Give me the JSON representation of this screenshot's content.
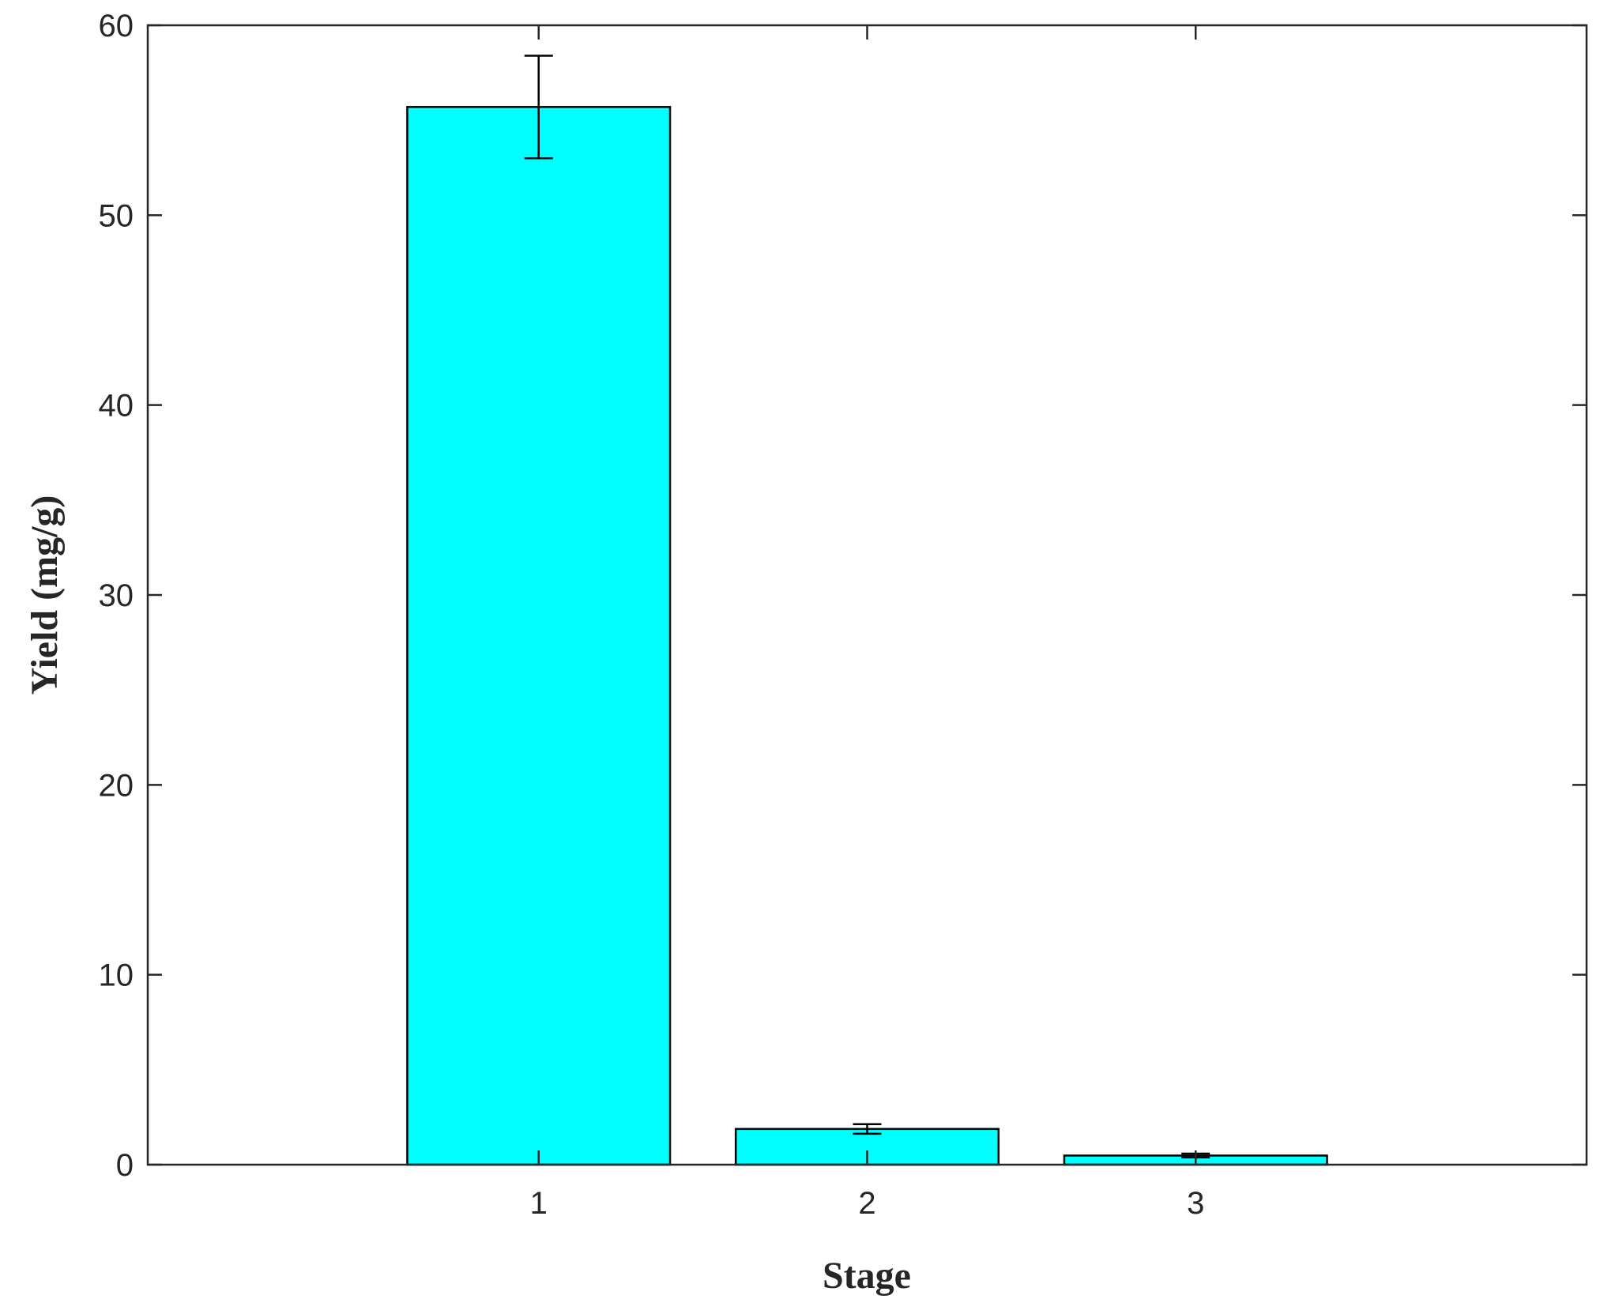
{
  "chart_data": {
    "type": "bar",
    "x": [
      1,
      2,
      3
    ],
    "xlim": [
      -0.19,
      4.19
    ],
    "xticks": [
      1,
      2,
      3
    ],
    "values": [
      55.7,
      1.88,
      0.48
    ],
    "errors": [
      2.7,
      0.25,
      0.1
    ],
    "color": "#00ffff",
    "ylim": [
      0,
      60
    ],
    "yticks": [
      0,
      10,
      20,
      30,
      40,
      50,
      60
    ],
    "xlabel": "Stage",
    "ylabel": "Yield (mg/g)",
    "grid": false
  }
}
